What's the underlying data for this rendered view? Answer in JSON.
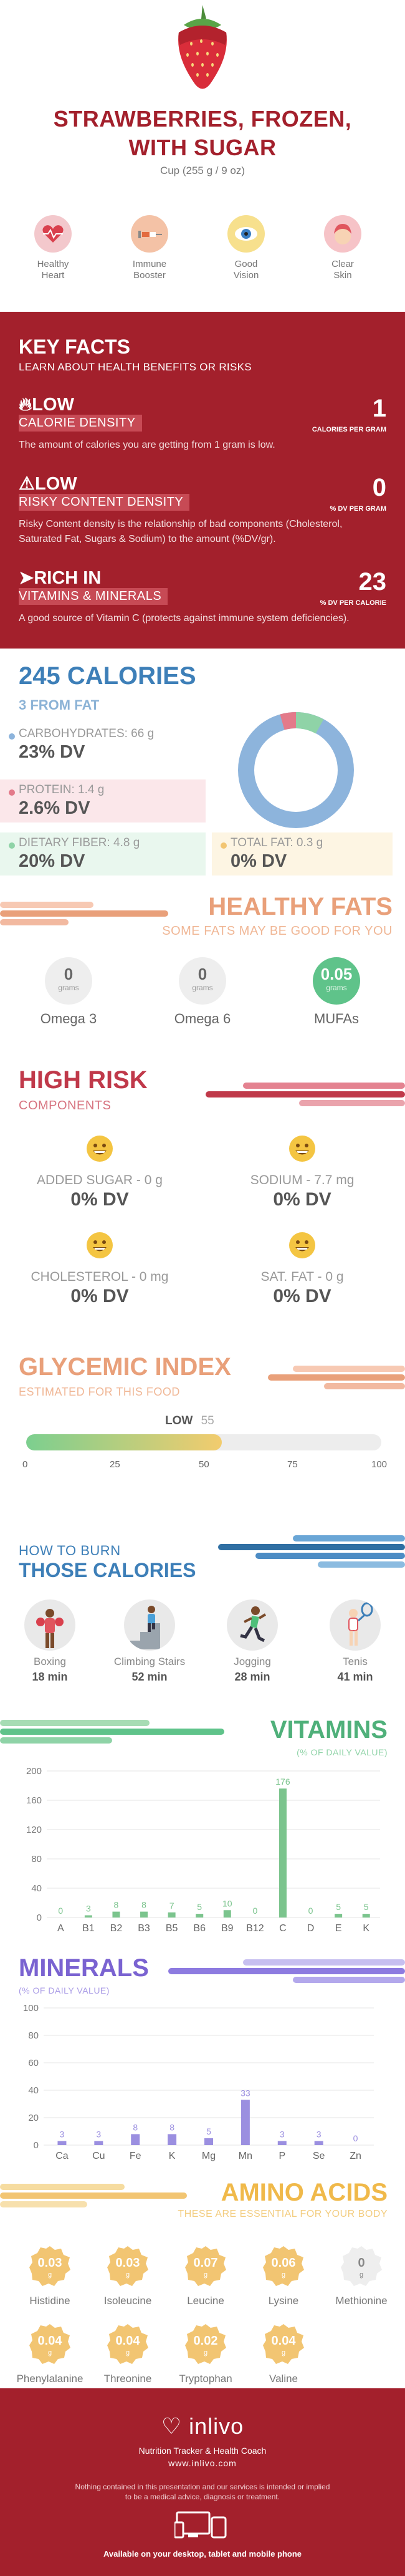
{
  "header": {
    "title_line1": "STRAWBERRIES, FROZEN,",
    "title_line2": "WITH SUGAR",
    "serving": "Cup (255 g / 9 oz)",
    "benefits": [
      {
        "line1": "Healthy",
        "line2": "Heart",
        "icon": "heart-icon"
      },
      {
        "line1": "Immune",
        "line2": "Booster",
        "icon": "syringe-icon"
      },
      {
        "line1": "Good",
        "line2": "Vision",
        "icon": "eye-icon"
      },
      {
        "line1": "Clear",
        "line2": "Skin",
        "icon": "face-icon"
      }
    ]
  },
  "key_facts": {
    "title": "KEY FACTS",
    "subtitle": "LEARN ABOUT HEALTH BENEFITS OR RISKS",
    "facts": [
      {
        "level": "LOW",
        "label": "CALORIE DENSITY",
        "value": "1",
        "unit": "CALORIES PER GRAM",
        "description": "The amount of calories you are getting from 1 gram is low."
      },
      {
        "level": "LOW",
        "label": "RISKY CONTENT DENSITY",
        "value": "0",
        "unit": "% DV PER GRAM",
        "description": "Risky Content density is the relationship of bad components (Cholesterol, Saturated Fat, Sugars & Sodium) to the amount (%DV/gr)."
      },
      {
        "level": "RICH  IN",
        "label": "VITAMINS & MINERALS",
        "value": "23",
        "unit": "% DV PER CALORIE",
        "description": "A good source of Vitamin C (protects against immune system deficiencies)."
      }
    ]
  },
  "calories": {
    "title": "245 CALORIES",
    "subtitle": "3 FROM FAT",
    "carbs_label": "CARBOHYDRATES: 66 g",
    "carbs_dv": "23% DV",
    "protein_label": "PROTEIN: 1.4 g",
    "protein_dv": "2.6% DV",
    "fiber_label": "DIETARY FIBER: 4.8 g",
    "fiber_dv": "20% DV",
    "fat_label": "TOTAL FAT: 0.3 g",
    "fat_dv": "0% DV",
    "colors": {
      "carbs": "#8db4dc",
      "protein": "#e37a8a",
      "fiber": "#8fd3a7",
      "fat": "#f2c572"
    }
  },
  "fats": {
    "title": "HEALTHY FATS",
    "subtitle": "SOME FATS MAY BE GOOD FOR YOU",
    "items": [
      {
        "value": "0",
        "unit": "grams",
        "name": "Omega 3"
      },
      {
        "value": "0",
        "unit": "grams",
        "name": "Omega 6"
      },
      {
        "value": "0.05",
        "unit": "grams",
        "name": "MUFAs"
      }
    ]
  },
  "risk": {
    "title": "HIGH RISK",
    "subtitle": "COMPONENTS",
    "items": [
      {
        "name": "ADDED SUGAR - 0 g",
        "dv": "0% DV"
      },
      {
        "name": "SODIUM - 7.7 mg",
        "dv": "0% DV"
      },
      {
        "name": "CHOLESTEROL - 0 mg",
        "dv": "0% DV"
      },
      {
        "name": "SAT. FAT - 0 g",
        "dv": "0% DV"
      }
    ]
  },
  "glycemic": {
    "title": "GLYCEMIC INDEX",
    "subtitle": "ESTIMATED FOR THIS FOOD",
    "level": "LOW",
    "value": "55",
    "value_num": 55,
    "ticks": [
      "0",
      "25",
      "50",
      "75",
      "100"
    ]
  },
  "burn": {
    "title_line1": "HOW TO BURN",
    "title_line2": "THOSE CALORIES",
    "activities": [
      {
        "name": "Boxing",
        "minutes": "18 min",
        "icon": "boxing-icon"
      },
      {
        "name": "Climbing Stairs",
        "minutes": "52 min",
        "icon": "stairs-icon"
      },
      {
        "name": "Jogging",
        "minutes": "28 min",
        "icon": "jogging-icon"
      },
      {
        "name": "Tenis",
        "minutes": "41 min",
        "icon": "tennis-icon"
      }
    ]
  },
  "chart_data": [
    {
      "type": "bar",
      "title": "VITAMINS",
      "ylabel": "(% OF DAILY VALUE)",
      "categories": [
        "A",
        "B1",
        "B2",
        "B3",
        "B5",
        "B6",
        "B9",
        "B12",
        "C",
        "D",
        "E",
        "K"
      ],
      "values": [
        0,
        3,
        8,
        8,
        7,
        5,
        10,
        0,
        176,
        0,
        5,
        5
      ],
      "ylim": [
        0,
        200
      ],
      "yticks": [
        "200",
        "160",
        "120",
        "80",
        "40",
        "0"
      ],
      "color": "#7bc48d"
    },
    {
      "type": "bar",
      "title": "MINERALS",
      "ylabel": "(% OF DAILY VALUE)",
      "categories": [
        "Ca",
        "Cu",
        "Fe",
        "K",
        "Mg",
        "Mn",
        "P",
        "Se",
        "Zn"
      ],
      "values": [
        3,
        3,
        8,
        8,
        5,
        33,
        3,
        3,
        0
      ],
      "ylim": [
        0,
        100
      ],
      "yticks": [
        "100",
        "80",
        "60",
        "40",
        "20",
        "0"
      ],
      "color": "#9b8fe0"
    }
  ],
  "amino": {
    "title": "AMINO ACIDS",
    "subtitle": "THESE ARE ESSENTIAL FOR YOUR BODY",
    "unit": "g",
    "items": [
      {
        "name": "Histidine",
        "value": "0.03"
      },
      {
        "name": "Isoleucine",
        "value": "0.03"
      },
      {
        "name": "Leucine",
        "value": "0.07"
      },
      {
        "name": "Lysine",
        "value": "0.06"
      },
      {
        "name": "Methionine",
        "value": "0"
      },
      {
        "name": "Phenylalanine",
        "value": "0.04"
      },
      {
        "name": "Threonine",
        "value": "0.04"
      },
      {
        "name": "Tryptophan",
        "value": "0.02"
      },
      {
        "name": "Valine",
        "value": "0.04"
      }
    ]
  },
  "footer": {
    "brand": "inlivo",
    "tagline": "Nutrition Tracker & Health Coach",
    "url": "www.inlivo.com",
    "disclaimer_line1": "Nothing contained in this presentation and our services is intended or implied",
    "disclaimer_line2": "to be a medical advice, diagnosis or treatment.",
    "available": "Available on your desktop, tablet and mobile phone"
  }
}
